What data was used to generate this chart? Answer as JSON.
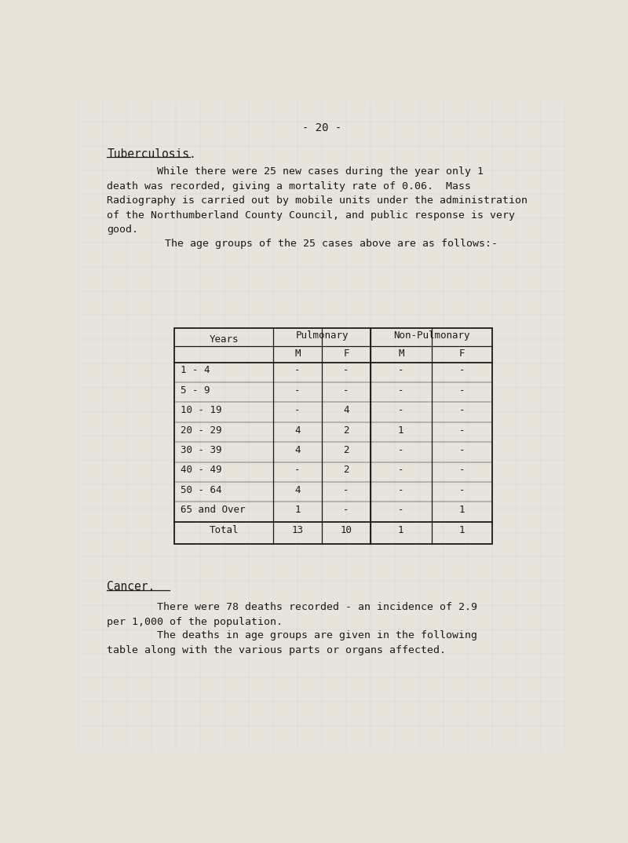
{
  "bg_color": "#e8e4dc",
  "page_number": "- 20 -",
  "title": "Tuberculosis.",
  "para1": "        While there were 25 new cases during the year only 1\ndeath was recorded, giving a mortality rate of 0.06.  Mass\nRadiography is carried out by mobile units under the administration\nof the Northumberland County Council, and public response is very\ngood.",
  "para2": "    The age groups of the 25 cases above are as follows:-",
  "table_rows": [
    [
      "1 - 4",
      "-",
      "-",
      "-",
      "-"
    ],
    [
      "5 - 9",
      "-",
      "-",
      "-",
      "-"
    ],
    [
      "10 - 19",
      "-",
      "4",
      "-",
      "-"
    ],
    [
      "20 - 29",
      "4",
      "2",
      "1",
      "-"
    ],
    [
      "30 - 39",
      "4",
      "2",
      "-",
      "-"
    ],
    [
      "40 - 49",
      "-",
      "2",
      "-",
      "-"
    ],
    [
      "50 - 64",
      "4",
      "-",
      "-",
      "-"
    ],
    [
      "65 and Over",
      "1",
      "-",
      "-",
      "1"
    ]
  ],
  "table_total": [
    "Total",
    "13",
    "10",
    "1",
    "1"
  ],
  "title2": "Cancer.",
  "para3": "        There were 78 deaths recorded - an incidence of 2.9\nper 1,000 of the population.",
  "para4": "        The deaths in age groups are given in the following\ntable along with the various parts or organs affected.",
  "font_color": "#1a1a1a",
  "grid_color": "#a0b4c8",
  "font_size_body": 9.5,
  "font_size_title": 10.5,
  "font_size_page": 10,
  "font_size_table": 9
}
